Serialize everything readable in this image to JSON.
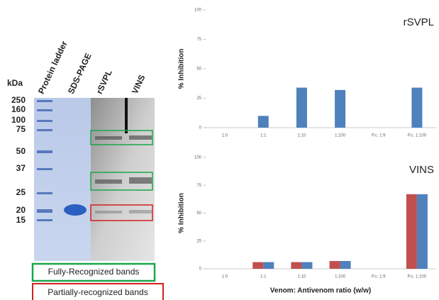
{
  "gel": {
    "unit_label": "kDa",
    "ladder": [
      250,
      160,
      100,
      75,
      50,
      37,
      25,
      20,
      15
    ],
    "lanes": [
      "Protein ladder",
      "SDS-PAGE",
      "rSVPL",
      "VINS"
    ],
    "legend": [
      "Fully-Recognized bands",
      "Partially-recognized bands"
    ]
  },
  "chart_data": [
    {
      "type": "bar",
      "title": "rSVPL",
      "y_label": "% Inhibition",
      "categories": [
        "1:0",
        "1:1",
        "1:10",
        "1:100",
        "P.c. 1:9",
        "P.c. 1:100"
      ],
      "series": [
        {
          "color": "#4f81bd",
          "values": [
            0,
            10,
            34,
            32,
            0,
            34
          ]
        }
      ],
      "ylim": [
        0,
        100
      ],
      "yticks": [
        0,
        25,
        50,
        75,
        100
      ]
    },
    {
      "type": "bar",
      "title": "VINS",
      "y_label": "% Inhibition",
      "x_label": "Venom: Antivenom ratio (w/w)",
      "categories": [
        "1:0",
        "1:1",
        "1:10",
        "1:100",
        "P.c. 1:9",
        "P.c. 1:100"
      ],
      "series": [
        {
          "color": "#c0504d",
          "values": [
            0,
            6,
            6,
            7,
            0,
            67
          ]
        },
        {
          "color": "#4f81bd",
          "values": [
            0,
            6,
            6,
            7,
            0,
            67
          ]
        }
      ],
      "ylim": [
        0,
        100
      ],
      "yticks": [
        0,
        25,
        50,
        75,
        100
      ]
    }
  ]
}
